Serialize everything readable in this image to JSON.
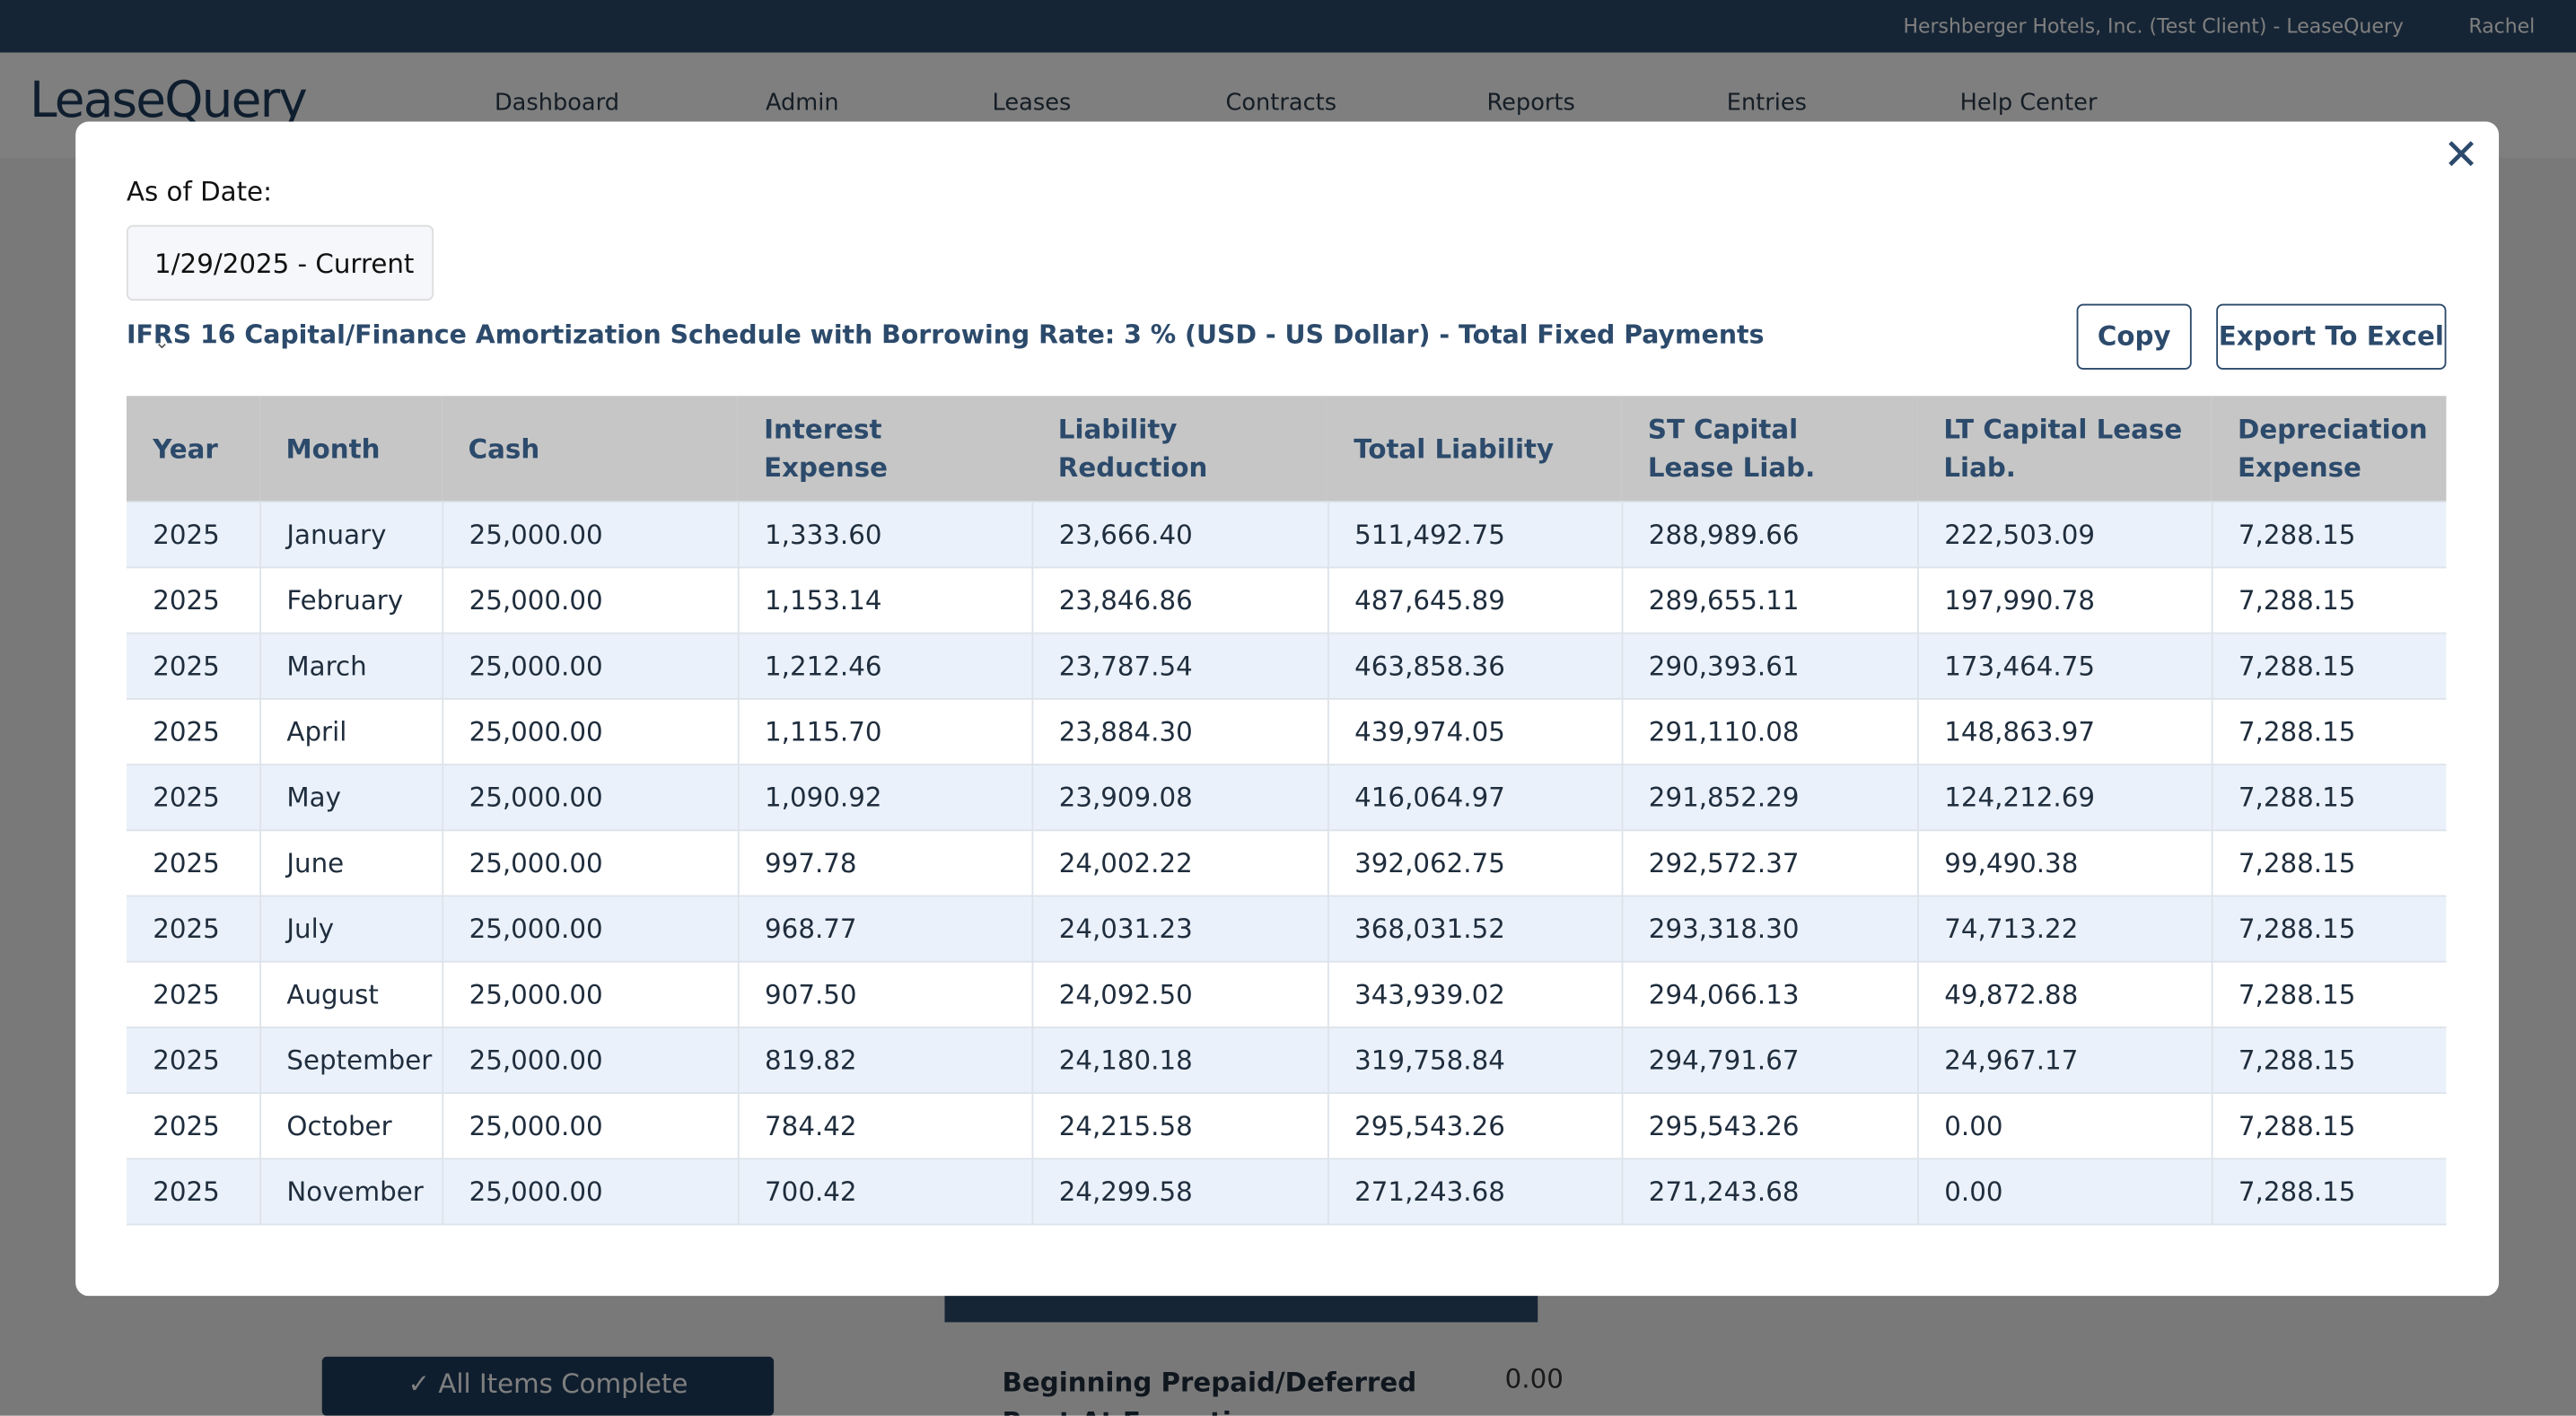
{
  "header": {
    "client": "Hershberger Hotels, Inc. (Test Client) - LeaseQuery",
    "user": "Rachel",
    "logo": "LeaseQuery"
  },
  "nav": [
    "Dashboard",
    "Admin",
    "Leases",
    "Contracts",
    "Reports",
    "Entries",
    "Help Center"
  ],
  "background": {
    "button": "All Items Complete",
    "field_label": "Beginning Prepaid/Deferred Rent At Execution",
    "field_value": "0.00"
  },
  "modal": {
    "date_label": "As of Date:",
    "date_value": "1/29/2025 - Current",
    "title": "IFRS 16 Capital/Finance Amortization Schedule with Borrowing Rate: 3 % (USD - US Dollar) - Total Fixed Payments",
    "buttons": [
      "Copy",
      "Export To Excel"
    ],
    "table": {
      "headers": [
        "Year",
        "Month",
        "Cash",
        "Interest Expense",
        "Liability Reduction",
        "Total Liability",
        "ST Capital Lease Liab.",
        "LT Capital Lease Liab.",
        "Depreciation Expense"
      ],
      "rows": [
        [
          "2025",
          "January",
          "25,000.00",
          "1,333.60",
          "23,666.40",
          "511,492.75",
          "288,989.66",
          "222,503.09",
          "7,288.15"
        ],
        [
          "2025",
          "February",
          "25,000.00",
          "1,153.14",
          "23,846.86",
          "487,645.89",
          "289,655.11",
          "197,990.78",
          "7,288.15"
        ],
        [
          "2025",
          "March",
          "25,000.00",
          "1,212.46",
          "23,787.54",
          "463,858.36",
          "290,393.61",
          "173,464.75",
          "7,288.15"
        ],
        [
          "2025",
          "April",
          "25,000.00",
          "1,115.70",
          "23,884.30",
          "439,974.05",
          "291,110.08",
          "148,863.97",
          "7,288.15"
        ],
        [
          "2025",
          "May",
          "25,000.00",
          "1,090.92",
          "23,909.08",
          "416,064.97",
          "291,852.29",
          "124,212.69",
          "7,288.15"
        ],
        [
          "2025",
          "June",
          "25,000.00",
          "997.78",
          "24,002.22",
          "392,062.75",
          "292,572.37",
          "99,490.38",
          "7,288.15"
        ],
        [
          "2025",
          "July",
          "25,000.00",
          "968.77",
          "24,031.23",
          "368,031.52",
          "293,318.30",
          "74,713.22",
          "7,288.15"
        ],
        [
          "2025",
          "August",
          "25,000.00",
          "907.50",
          "24,092.50",
          "343,939.02",
          "294,066.13",
          "49,872.88",
          "7,288.15"
        ],
        [
          "2025",
          "September",
          "25,000.00",
          "819.82",
          "24,180.18",
          "319,758.84",
          "294,791.67",
          "24,967.17",
          "7,288.15"
        ],
        [
          "2025",
          "October",
          "25,000.00",
          "784.42",
          "24,215.58",
          "295,543.26",
          "295,543.26",
          "0.00",
          "7,288.15"
        ],
        [
          "2025",
          "November",
          "25,000.00",
          "700.42",
          "24,299.58",
          "271,243.68",
          "271,243.68",
          "0.00",
          "7,288.15"
        ]
      ]
    }
  }
}
